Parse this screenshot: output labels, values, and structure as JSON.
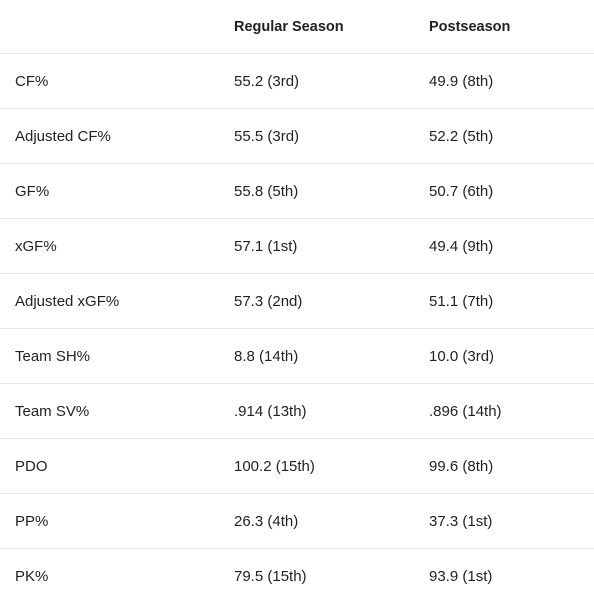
{
  "table": {
    "header": [
      "",
      "Regular Season",
      "Postseason"
    ],
    "rows": [
      [
        "CF%",
        "55.2 (3rd)",
        "49.9 (8th)"
      ],
      [
        "Adjusted CF%",
        "55.5 (3rd)",
        "52.2 (5th)"
      ],
      [
        "GF%",
        "55.8 (5th)",
        "50.7 (6th)"
      ],
      [
        "xGF%",
        "57.1 (1st)",
        "49.4 (9th)"
      ],
      [
        "Adjusted xGF%",
        "57.3 (2nd)",
        "51.1 (7th)"
      ],
      [
        "Team SH%",
        "8.8 (14th)",
        "10.0 (3rd)"
      ],
      [
        "Team SV%",
        ".914 (13th)",
        ".896 (14th)"
      ],
      [
        "PDO",
        "100.2 (15th)",
        "99.6 (8th)"
      ],
      [
        "PP%",
        "26.3 (4th)",
        "37.3 (1st)"
      ],
      [
        "PK%",
        "79.5 (15th)",
        "93.9 (1st)"
      ]
    ]
  }
}
